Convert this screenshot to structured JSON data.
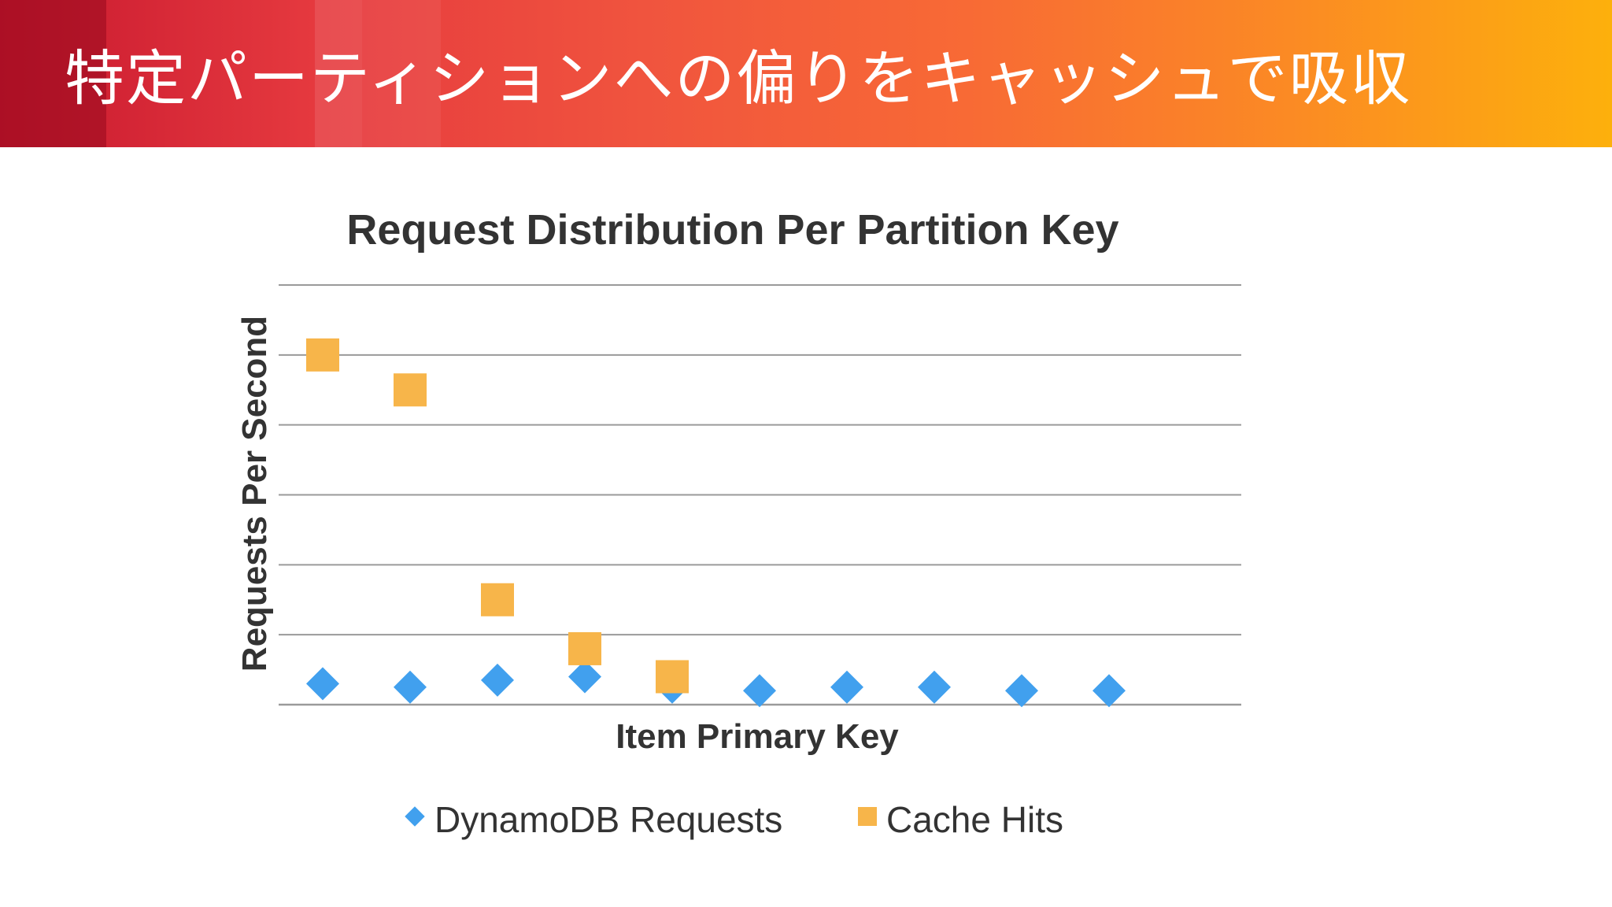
{
  "slide": {
    "title": "特定パーティションへの偏りをキャッシュで吸収"
  },
  "colors": {
    "dynamodb": "#41a0ee",
    "cache": "#f7b54a",
    "gridline": "#9a9a9a",
    "text": "#333333"
  },
  "chart_data": {
    "type": "scatter",
    "title": "Request Distribution Per Partition Key",
    "xlabel": "Item Primary Key",
    "ylabel": "Requests Per Second",
    "x": [
      1,
      2,
      3,
      4,
      5,
      6,
      7,
      8,
      9,
      10
    ],
    "ylim": [
      0,
      6
    ],
    "grid": true,
    "legend_position": "bottom",
    "series": [
      {
        "name": "DynamoDB Requests",
        "marker": "diamond",
        "x": [
          1,
          2,
          3,
          4,
          5,
          6,
          7,
          8,
          9,
          10
        ],
        "values": [
          0.3,
          0.25,
          0.35,
          0.4,
          0.25,
          0.2,
          0.25,
          0.25,
          0.2,
          0.2
        ]
      },
      {
        "name": "Cache Hits",
        "marker": "square",
        "x": [
          1,
          2,
          3,
          4,
          5
        ],
        "values": [
          5.0,
          4.5,
          1.5,
          0.8,
          0.4
        ]
      }
    ]
  }
}
